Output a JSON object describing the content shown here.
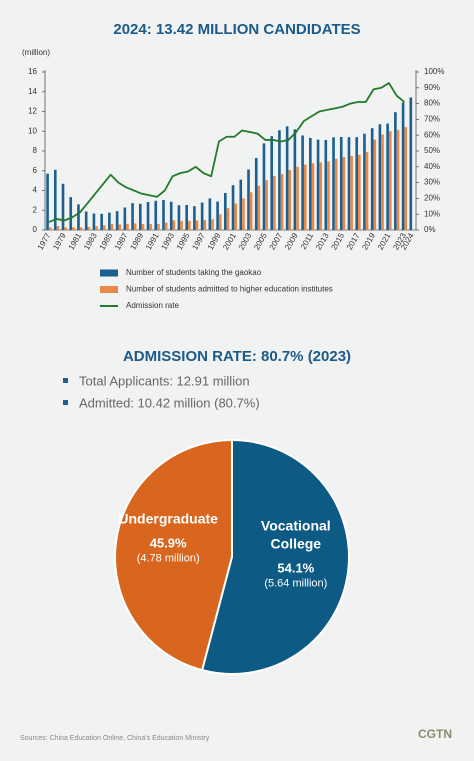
{
  "chart_data": [
    {
      "type": "bar-line",
      "title": "2024: 13.42 MILLION CANDIDATES",
      "ylabel": "(million)",
      "categories": [
        "1977",
        null,
        "1979",
        null,
        "1981",
        null,
        "1983",
        null,
        "1985",
        null,
        "1987",
        null,
        "1989",
        null,
        "1991",
        null,
        "1993",
        null,
        "1995",
        null,
        "1997",
        null,
        "1999",
        null,
        "2001",
        null,
        "2003",
        null,
        "2005",
        null,
        "2007",
        null,
        "2009",
        null,
        "2011",
        null,
        "2013",
        null,
        "2015",
        null,
        "2017",
        null,
        "2019",
        null,
        "2021",
        null,
        "2023",
        "2024"
      ],
      "series": [
        {
          "name": "Number of students taking the gaokao",
          "color": "#1d5f8e",
          "kind": "bar",
          "values": [
            5.7,
            6.1,
            4.68,
            3.33,
            2.59,
            1.87,
            1.67,
            1.64,
            1.76,
            1.91,
            2.28,
            2.72,
            2.66,
            2.83,
            2.96,
            3.03,
            2.86,
            2.51,
            2.53,
            2.41,
            2.78,
            3.2,
            2.88,
            3.75,
            4.54,
            5.1,
            6.13,
            7.29,
            8.77,
            9.5,
            10.1,
            10.5,
            10.2,
            9.57,
            9.33,
            9.15,
            9.12,
            9.39,
            9.42,
            9.4,
            9.4,
            9.75,
            10.31,
            10.71,
            10.78,
            11.93,
            12.91,
            13.42
          ]
        },
        {
          "name": "Number of students admitted to higher education institutes",
          "color": "#e8894a",
          "kind": "bar",
          "values": [
            0.27,
            0.4,
            0.28,
            0.28,
            0.28,
            0.32,
            0.39,
            0.48,
            0.62,
            0.57,
            0.62,
            0.67,
            0.6,
            0.61,
            0.62,
            0.75,
            0.98,
            0.9,
            0.93,
            0.97,
            1.0,
            1.08,
            1.6,
            2.21,
            2.68,
            3.2,
            3.82,
            4.47,
            5.04,
            5.46,
            5.66,
            6.08,
            6.39,
            6.62,
            6.75,
            6.85,
            6.94,
            7.21,
            7.38,
            7.49,
            7.61,
            7.91,
            9.15,
            9.67,
            10.01,
            10.14,
            10.42,
            null
          ]
        },
        {
          "name": "Admission rate",
          "color": "#237a2a",
          "kind": "line",
          "axis": "y2",
          "values": [
            5,
            7,
            6,
            8,
            11,
            17,
            23,
            29,
            35,
            30,
            27,
            25,
            23,
            22,
            21,
            25,
            34,
            36,
            37,
            40,
            36,
            34,
            56,
            59,
            59,
            63,
            62,
            61,
            57,
            57,
            56,
            57,
            62,
            69,
            72,
            75,
            76,
            77,
            78,
            80,
            81,
            81,
            89,
            90,
            93,
            85,
            81,
            null
          ]
        }
      ],
      "ylim": [
        0,
        16
      ],
      "yticks": [
        0,
        2,
        4,
        6,
        8,
        10,
        12,
        14,
        16
      ],
      "y2lim": [
        0,
        100
      ],
      "y2ticks": [
        {
          "value": 0,
          "label": "0%"
        },
        {
          "value": 10,
          "label": "10%"
        },
        {
          "value": 20,
          "label": "20%"
        },
        {
          "value": 30,
          "label": "30%"
        },
        {
          "value": 40,
          "label": "40%"
        },
        {
          "value": 50,
          "label": "50%"
        },
        {
          "value": 60,
          "label": "60%"
        },
        {
          "value": 70,
          "label": "70%"
        },
        {
          "value": 80,
          "label": "80%"
        },
        {
          "value": 90,
          "label": "90%"
        },
        {
          "value": 100,
          "label": "100%"
        }
      ],
      "grid": false,
      "legend": "bottom"
    },
    {
      "type": "pie",
      "title": "ADMISSION RATE: 80.7% (2023)",
      "categories": [
        "Undergraduate",
        "Vocational College"
      ],
      "values": [
        45.9,
        54.1
      ],
      "value_labels": [
        "45.9%",
        "54.1%"
      ],
      "details": [
        "(4.78 million)",
        "(5.64 million)"
      ],
      "colors": [
        "#d9661f",
        "#0d5a84"
      ]
    }
  ],
  "summary": [
    "Total Applicants: 12.91 million",
    "Admitted: 10.42 million (80.7%)"
  ],
  "footer": {
    "sources": "Sources: China Education Online, China's Education Ministry",
    "brand": "CGTN"
  }
}
